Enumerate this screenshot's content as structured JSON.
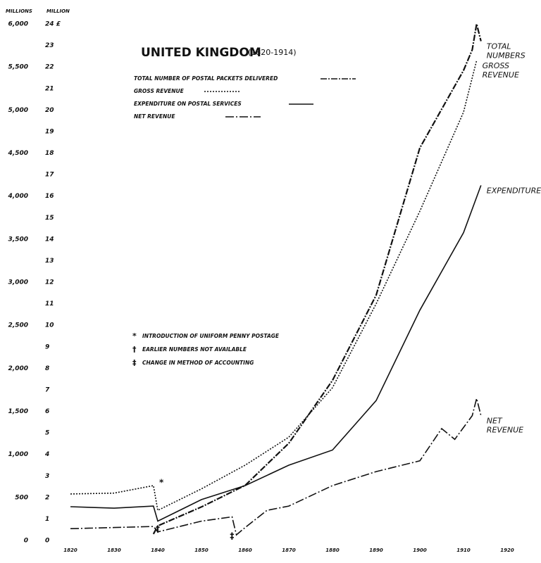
{
  "chart_data": {
    "type": "line",
    "title": "UNITED KINGDOM",
    "subtitle": "(1820-1914)",
    "y_label": "MILLIONS",
    "y2_label": "MILLION",
    "xlim": [
      1820,
      1920
    ],
    "xticks": [
      1820,
      1830,
      1840,
      1850,
      1860,
      1870,
      1880,
      1890,
      1900,
      1910,
      1920
    ],
    "ylim": [
      0,
      6000
    ],
    "yticks": [
      0,
      {
        "value": 500,
        "label": "500"
      },
      {
        "value": 1000,
        "label": "1,000"
      },
      {
        "value": 1500,
        "label": "1,500"
      },
      {
        "value": 2000,
        "label": "2,000"
      },
      {
        "value": 2500,
        "label": "2,500"
      },
      {
        "value": 3000,
        "label": "3,000"
      },
      {
        "value": 3500,
        "label": "3,500"
      },
      {
        "value": 4000,
        "label": "4,000"
      },
      {
        "value": 4500,
        "label": "4,500"
      },
      {
        "value": 5000,
        "label": "5,000"
      },
      {
        "value": 5500,
        "label": "5,500"
      },
      {
        "value": 6000,
        "label": "6,000"
      }
    ],
    "y2lim": [
      0,
      24
    ],
    "y2ticks": [
      0,
      1,
      2,
      3,
      4,
      5,
      6,
      7,
      8,
      9,
      10,
      11,
      12,
      13,
      14,
      15,
      16,
      17,
      18,
      19,
      20,
      21,
      22,
      23,
      {
        "value": 24,
        "label": "24 £"
      }
    ],
    "series": [
      {
        "name": "TOTAL NUMBER OF POSTAL PACKETS DELIVERED",
        "label": "TOTAL NUMBERS",
        "color": "#111",
        "dash": "dash-dot",
        "axis": "y",
        "x": [
          1839,
          1840,
          1850,
          1860,
          1870,
          1880,
          1890,
          1900,
          1910,
          1912,
          1913,
          1914
        ],
        "values": [
          75,
          170,
          390,
          640,
          1130,
          1860,
          2850,
          4560,
          5460,
          5700,
          6000,
          5800
        ]
      },
      {
        "name": "GROSS REVENUE",
        "label": "GROSS REVENUE",
        "color": "#111",
        "dash": "dotted",
        "axis": "y2",
        "x": [
          1820,
          1830,
          1839,
          1840,
          1850,
          1860,
          1870,
          1880,
          1890,
          1900,
          1910,
          1913
        ],
        "values": [
          2.16,
          2.2,
          2.55,
          1.4,
          2.4,
          3.5,
          4.8,
          7.1,
          11,
          15.3,
          19.9,
          22.3
        ]
      },
      {
        "name": "EXPENDITURE ON POSTAL SERVICES",
        "label": "EXPENDITURE",
        "color": "#111",
        "dash": "solid",
        "axis": "y2",
        "x": [
          1820,
          1830,
          1839,
          1840,
          1850,
          1860,
          1870,
          1880,
          1890,
          1900,
          1910,
          1914
        ],
        "values": [
          1.57,
          1.5,
          1.6,
          0.9,
          1.9,
          2.55,
          3.5,
          4.2,
          6.5,
          10.7,
          14.3,
          16.5
        ]
      },
      {
        "name": "NET REVENUE",
        "label": "NET REVENUE",
        "color": "#111",
        "dash": "dash-dot-dot",
        "axis": "y2",
        "x": [
          1820,
          1830,
          1839,
          1840,
          1850,
          1857,
          1858,
          1860,
          1865,
          1870,
          1880,
          1890,
          1900,
          1905,
          1908,
          1912,
          1913,
          1914
        ],
        "values": [
          0.55,
          0.6,
          0.65,
          0.4,
          0.9,
          1.1,
          0.26,
          0.6,
          1.4,
          1.6,
          2.55,
          3.2,
          3.7,
          5.2,
          4.7,
          5.8,
          6.6,
          5.8
        ]
      }
    ],
    "notes": [
      {
        "symbol": "*",
        "text": "INTRODUCTION OF UNIFORM PENNY POSTAGE"
      },
      {
        "symbol": "†",
        "text": "EARLIER NUMBERS NOT AVAILABLE"
      },
      {
        "symbol": "‡",
        "text": "CHANGE IN METHOD OF ACCOUNTING"
      }
    ]
  }
}
